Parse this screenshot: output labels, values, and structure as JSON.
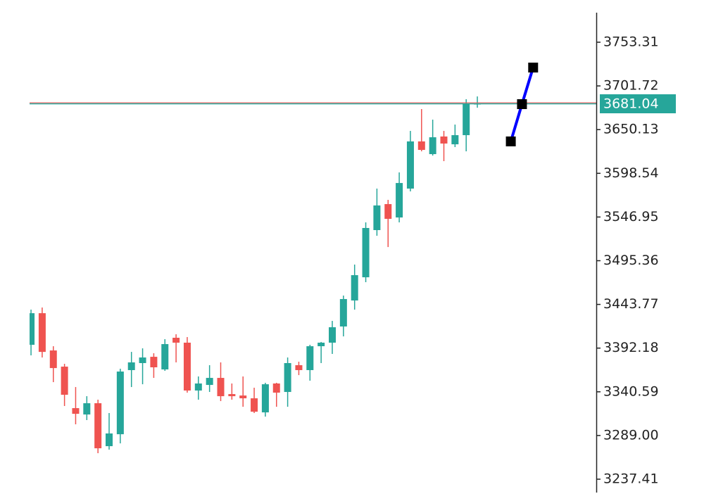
{
  "chart_data": {
    "type": "candlestick",
    "open": [
      3396.1,
      3433.4,
      3389.4,
      3370.3,
      3321.3,
      3313.8,
      3327.1,
      3276.4,
      3290.5,
      3366.2,
      3374.5,
      3381.9,
      3367.0,
      3404.4,
      3398.6,
      3342.1,
      3348.7,
      3357.0,
      3337.9,
      3336.2,
      3332.9,
      3316.3,
      3350.4,
      3340.4,
      3372.0,
      3366.2,
      3394.4,
      3398.6,
      3417.7,
      3448.4,
      3475.8,
      3531.5,
      3562.2,
      3546.4,
      3580.5,
      3636.2,
      3621.2,
      3642.0,
      3632.8,
      3643.6,
      3680.2
    ],
    "high": [
      3437.6,
      3440.1,
      3394.4,
      3373.6,
      3346.2,
      3335.4,
      3331.3,
      3315.5,
      3367.8,
      3387.7,
      3391.9,
      3386.1,
      3402.7,
      3408.5,
      3405.2,
      3358.7,
      3372.0,
      3375.3,
      3350.4,
      3358.7,
      3345.4,
      3351.2,
      3351.2,
      3381.1,
      3376.1,
      3396.1,
      3399.4,
      3424.3,
      3454.2,
      3490.8,
      3540.6,
      3580.5,
      3567.2,
      3599.6,
      3648.6,
      3674.4,
      3661.9,
      3648.6,
      3656.1,
      3686.0,
      3689.3
    ],
    "low": [
      3383.6,
      3381.1,
      3352.0,
      3323.8,
      3302.2,
      3307.2,
      3268.1,
      3272.3,
      3279.7,
      3346.2,
      3349.5,
      3357.0,
      3365.3,
      3375.3,
      3339.6,
      3331.3,
      3340.4,
      3329.6,
      3331.3,
      3322.9,
      3315.5,
      3311.3,
      3322.9,
      3322.9,
      3360.3,
      3353.7,
      3374.5,
      3385.3,
      3406.0,
      3437.6,
      3470.0,
      3524.8,
      3511.5,
      3540.6,
      3577.2,
      3624.5,
      3619.5,
      3612.9,
      3629.5,
      3624.5,
      3676.0
    ],
    "close": [
      3433.4,
      3387.7,
      3368.6,
      3337.1,
      3314.6,
      3327.1,
      3273.9,
      3291.4,
      3364.5,
      3375.3,
      3381.1,
      3369.5,
      3396.9,
      3398.6,
      3342.1,
      3350.4,
      3357.0,
      3335.4,
      3335.4,
      3332.9,
      3317.1,
      3349.5,
      3339.6,
      3374.5,
      3366.2,
      3394.4,
      3398.6,
      3416.8,
      3450.1,
      3478.3,
      3534.0,
      3560.6,
      3544.8,
      3587.1,
      3636.2,
      3626.2,
      3641.1,
      3633.7,
      3643.6,
      3680.2,
      3681.04
    ],
    "up_color": "#26a69a",
    "down_color": "#ef5350",
    "xlim": [
      -2.78,
      50.66
    ],
    "ylim": [
      3211.66,
      3803.16
    ],
    "yticks": [
      3237.41,
      {
        "value": 3289,
        "label": "3289.00"
      },
      3340.59,
      3392.18,
      3443.77,
      3495.36,
      3546.95,
      3598.54,
      3650.13,
      3701.72,
      3753.31
    ],
    "price_line": {
      "value": 3681.04,
      "color": "#26a69a"
    },
    "overlay": {
      "x": [
        43,
        44,
        45
      ],
      "values": [
        3636.2,
        3680.2,
        3723.4
      ],
      "color": "#0000ff",
      "marker_color": "#000000"
    }
  }
}
